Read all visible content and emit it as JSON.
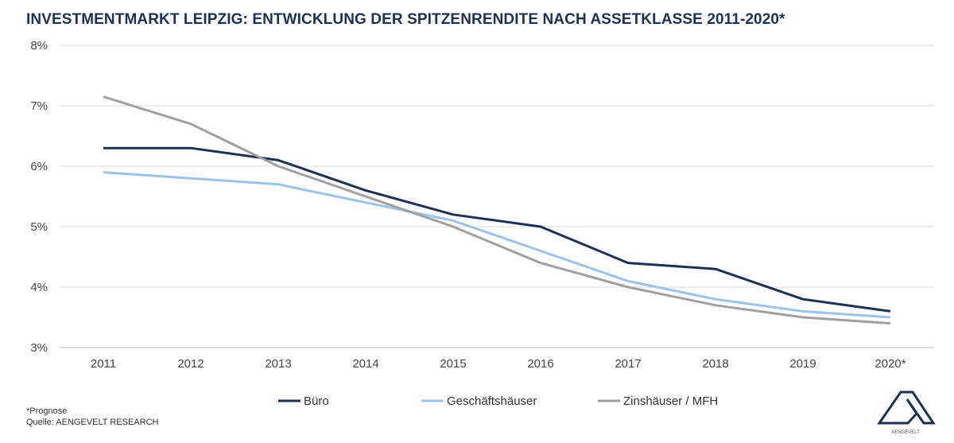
{
  "title": "INVESTMENTMARKT LEIPZIG: ENTWICKLUNG DER SPITZENRENDITE NACH ASSETKLASSE 2011-2020*",
  "footnote": "*Prognose",
  "source": "Quelle: AENGEVELT RESEARCH",
  "logo_text": "AENGEVELT",
  "chart_data": {
    "type": "line",
    "title": "INVESTMENTMARKT LEIPZIG: ENTWICKLUNG DER SPITZENRENDITE NACH ASSETKLASSE 2011-2020*",
    "categories": [
      "2011",
      "2012",
      "2013",
      "2014",
      "2015",
      "2016",
      "2017",
      "2018",
      "2019",
      "2020*"
    ],
    "ylim": [
      3,
      8
    ],
    "yticks": [
      3,
      4,
      5,
      6,
      7,
      8
    ],
    "ytick_labels": [
      "3%",
      "4%",
      "5%",
      "6%",
      "7%",
      "8%"
    ],
    "grid": true,
    "legend_position": "bottom",
    "series": [
      {
        "name": "Büro",
        "color": "#1f3152",
        "values": [
          6.3,
          6.3,
          6.1,
          5.6,
          5.2,
          5.0,
          4.4,
          4.3,
          3.8,
          3.6
        ]
      },
      {
        "name": "Geschäftshäuser",
        "color": "#9dc3e6",
        "values": [
          5.9,
          5.8,
          5.7,
          5.4,
          5.1,
          4.6,
          4.1,
          3.8,
          3.6,
          3.5
        ]
      },
      {
        "name": "Zinshäuser / MFH",
        "color": "#a0a0a0",
        "values": [
          7.15,
          6.7,
          6.0,
          5.5,
          5.0,
          4.4,
          4.0,
          3.7,
          3.5,
          3.4
        ]
      }
    ]
  }
}
